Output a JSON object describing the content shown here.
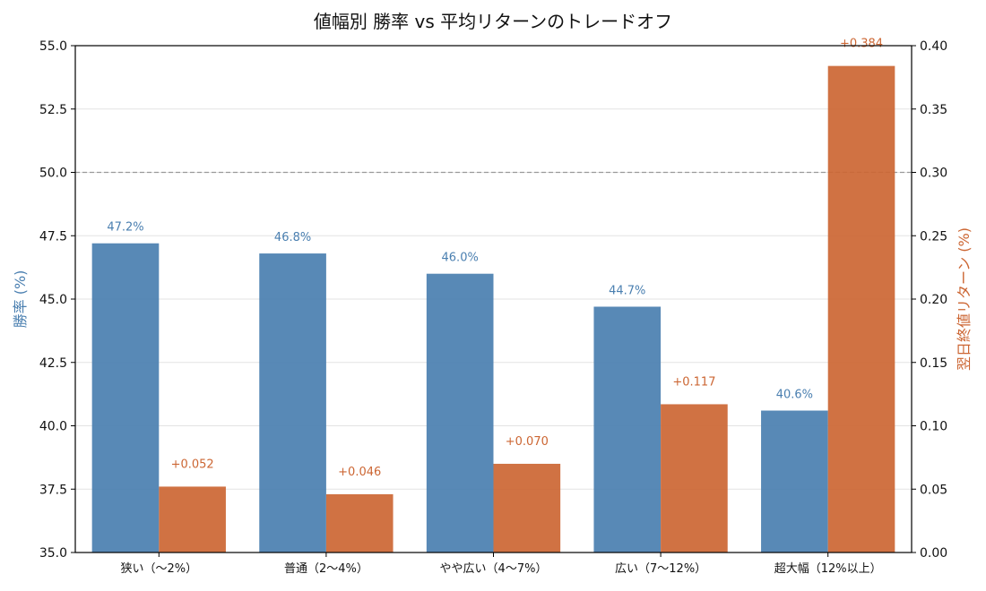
{
  "chart_data": {
    "type": "bar",
    "title": "値幅別 勝率 vs 平均リターンのトレードオフ",
    "categories": [
      "狭い（〜2%）",
      "普通（2〜4%）",
      "やや広い（4〜7%）",
      "広い（7〜12%）",
      "超大幅（12%以上）"
    ],
    "series": [
      {
        "name": "勝率",
        "axis": "left",
        "color": "#4a7fb0",
        "values": [
          47.2,
          46.8,
          46.0,
          44.7,
          40.6
        ],
        "labels": [
          "47.2%",
          "46.8%",
          "46.0%",
          "44.7%",
          "40.6%"
        ]
      },
      {
        "name": "翌日終値リターン",
        "axis": "right",
        "color": "#cc6633",
        "values": [
          0.052,
          0.046,
          0.07,
          0.117,
          0.384
        ],
        "labels": [
          "+0.052",
          "+0.046",
          "+0.070",
          "+0.117",
          "+0.384"
        ]
      }
    ],
    "ylabel_left": "勝率 (%)",
    "ylabel_right": "翌日終値リターン (%)",
    "ylim_left": [
      35.0,
      55.0
    ],
    "ylim_right": [
      0.0,
      0.4
    ],
    "yticks_left": [
      "35.0",
      "37.5",
      "40.0",
      "42.5",
      "45.0",
      "47.5",
      "50.0",
      "52.5",
      "55.0"
    ],
    "yticks_right": [
      "0.00",
      "0.05",
      "0.10",
      "0.15",
      "0.20",
      "0.25",
      "0.30",
      "0.35",
      "0.40"
    ],
    "reference_line_left": 50.0,
    "grid": true
  }
}
